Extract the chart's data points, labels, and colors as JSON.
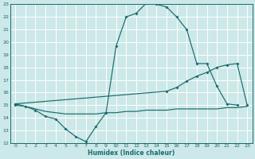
{
  "xlabel": "Humidex (Indice chaleur)",
  "bg_color": "#cce8e8",
  "grid_color": "#ffffff",
  "line_color": "#1a6b6b",
  "xlim": [
    -0.5,
    23.5
  ],
  "ylim": [
    12,
    23
  ],
  "xticks": [
    0,
    1,
    2,
    3,
    4,
    5,
    6,
    7,
    8,
    9,
    10,
    11,
    12,
    13,
    14,
    15,
    16,
    17,
    18,
    19,
    20,
    21,
    22,
    23
  ],
  "yticks": [
    12,
    13,
    14,
    15,
    16,
    17,
    18,
    19,
    20,
    21,
    22,
    23
  ],
  "curve1_x": [
    0,
    1,
    2,
    3,
    4,
    5,
    6,
    7,
    8,
    9,
    10,
    11,
    12,
    13,
    14,
    15,
    16,
    17,
    18,
    19,
    20,
    21,
    22
  ],
  "curve1_y": [
    15.0,
    14.9,
    14.6,
    14.1,
    13.9,
    13.1,
    12.5,
    12.1,
    13.3,
    14.4,
    19.7,
    22.0,
    22.3,
    23.1,
    23.0,
    22.8,
    22.0,
    21.0,
    18.3,
    18.3,
    16.5,
    15.1,
    15.0
  ],
  "curve2_x": [
    0,
    15,
    16,
    17,
    18,
    19,
    20,
    21,
    22,
    23
  ],
  "curve2_y": [
    15.1,
    16.1,
    16.4,
    16.9,
    17.3,
    17.6,
    18.0,
    18.2,
    18.3,
    15.0
  ],
  "curve3_x": [
    0,
    1,
    2,
    3,
    4,
    5,
    6,
    7,
    8,
    9,
    10,
    11,
    12,
    13,
    14,
    15,
    16,
    17,
    18,
    19,
    20,
    21,
    22,
    23
  ],
  "curve3_y": [
    15.1,
    14.9,
    14.7,
    14.5,
    14.4,
    14.3,
    14.3,
    14.3,
    14.3,
    14.4,
    14.4,
    14.5,
    14.5,
    14.6,
    14.6,
    14.6,
    14.7,
    14.7,
    14.7,
    14.7,
    14.7,
    14.8,
    14.8,
    14.9
  ]
}
